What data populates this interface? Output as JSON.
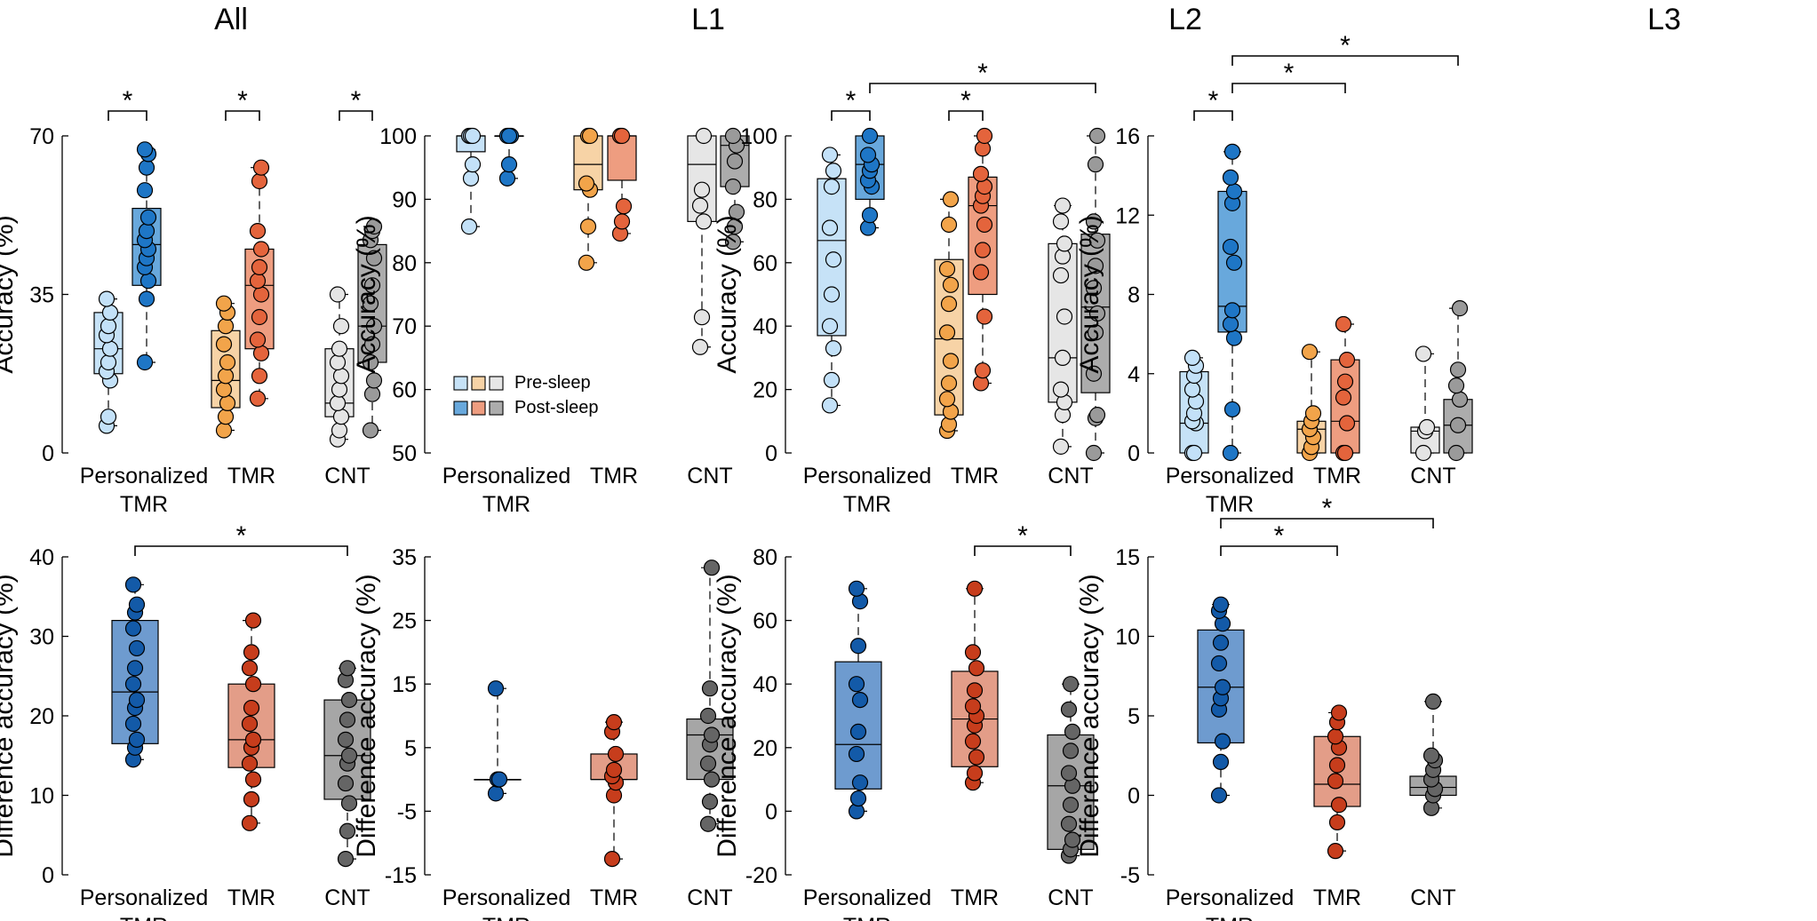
{
  "legend": {
    "pre_label": "Pre-sleep",
    "post_label": "Post-sleep"
  },
  "colors": {
    "pre": [
      "#c6e2f7",
      "#f7d3a6",
      "#e6e6e6"
    ],
    "post": [
      "#68a8dc",
      "#ee9d80",
      "#acacac"
    ],
    "pre_dot": [
      "#c3e1f8",
      "#f2a44a",
      "#e4e4e4"
    ],
    "post_dot": [
      "#1e76c6",
      "#e4643c",
      "#9a9a9a"
    ],
    "diff_box": [
      "#6e9bcf",
      "#e39d88",
      "#a6a6a6"
    ],
    "diff_dot": [
      "#135aa8",
      "#c73d1c",
      "#656565"
    ]
  },
  "chart_data": [
    {
      "type": "box",
      "panel": "top",
      "title": "All",
      "ylabel": "Accuracy (%)",
      "ylim": [
        0,
        70
      ],
      "yticks": [
        "0",
        "35",
        "70"
      ],
      "categories": [
        [
          "Personalized",
          "TMR"
        ],
        [
          "TMR"
        ],
        [
          "CNT"
        ]
      ],
      "boxes": [
        {
          "g": 0,
          "k": "pre",
          "q1": 17.5,
          "med": 23,
          "q3": 31,
          "wlo": 6,
          "whi": 34,
          "pts": [
            6,
            8,
            16,
            18,
            20,
            23,
            26,
            28,
            31,
            34
          ]
        },
        {
          "g": 0,
          "k": "post",
          "q1": 37,
          "med": 46,
          "q3": 54,
          "wlo": 20,
          "whi": 67,
          "pts": [
            20,
            34,
            38,
            41,
            43,
            45,
            47,
            49,
            52,
            58,
            63,
            66,
            67
          ]
        },
        {
          "g": 1,
          "k": "pre",
          "q1": 10,
          "med": 16,
          "q3": 27,
          "wlo": 5,
          "whi": 33,
          "pts": [
            5,
            8,
            11,
            14,
            17,
            20,
            24,
            28,
            31,
            33
          ]
        },
        {
          "g": 1,
          "k": "post",
          "q1": 23,
          "med": 37,
          "q3": 45,
          "wlo": 12,
          "whi": 63,
          "pts": [
            12,
            17,
            22,
            25,
            30,
            35,
            38,
            41,
            45,
            49,
            60,
            63
          ]
        },
        {
          "g": 2,
          "k": "pre",
          "q1": 8,
          "med": 11,
          "q3": 23,
          "wlo": 3,
          "whi": 35,
          "pts": [
            3,
            5,
            8,
            11,
            14,
            17,
            20,
            23,
            28,
            35
          ]
        },
        {
          "g": 2,
          "k": "post",
          "q1": 20,
          "med": 28,
          "q3": 46,
          "wlo": 5,
          "whi": 50,
          "pts": [
            5,
            13,
            16,
            20,
            24,
            28,
            33,
            37,
            43,
            47,
            49,
            50
          ]
        }
      ],
      "sig": [
        {
          "a": [
            0,
            0
          ],
          "b": [
            0,
            1
          ],
          "lvl": 0
        },
        {
          "a": [
            1,
            0
          ],
          "b": [
            1,
            1
          ],
          "lvl": 0
        },
        {
          "a": [
            2,
            0
          ],
          "b": [
            2,
            1
          ],
          "lvl": 0
        }
      ],
      "star": "*",
      "legend_visible": false
    },
    {
      "type": "box",
      "panel": "top",
      "title": "L1",
      "ylabel": "Accuracy (%)",
      "ylim": [
        50,
        100
      ],
      "yticks": [
        "50",
        "60",
        "70",
        "80",
        "90",
        "100"
      ],
      "categories": [
        [
          "Personalized",
          "TMR"
        ],
        [
          "TMR"
        ],
        [
          "CNT"
        ]
      ],
      "boxes": [
        {
          "g": 0,
          "k": "pre",
          "q1": 97.5,
          "med": 100,
          "q3": 100,
          "wlo": 85.7,
          "whi": 100,
          "pts": [
            85.7,
            93.3,
            95.5,
            100,
            100,
            100
          ]
        },
        {
          "g": 0,
          "k": "post",
          "q1": 100,
          "med": 100,
          "q3": 100,
          "wlo": 93.3,
          "whi": 100,
          "pts": [
            93.3,
            95.5,
            100,
            100,
            100
          ]
        },
        {
          "g": 1,
          "k": "pre",
          "q1": 91.5,
          "med": 95.5,
          "q3": 100,
          "wlo": 80,
          "whi": 100,
          "pts": [
            80,
            85.7,
            91.5,
            92.5,
            100,
            100
          ]
        },
        {
          "g": 1,
          "k": "post",
          "q1": 93,
          "med": 100,
          "q3": 100,
          "wlo": 84.6,
          "whi": 100,
          "pts": [
            84.6,
            86.5,
            88.9,
            100,
            100
          ]
        },
        {
          "g": 2,
          "k": "pre",
          "q1": 86.5,
          "med": 95.5,
          "q3": 100,
          "wlo": 66.7,
          "whi": 100,
          "pts": [
            66.7,
            71.4,
            86.5,
            89,
            91.5,
            100
          ]
        },
        {
          "g": 2,
          "k": "post",
          "q1": 92,
          "med": 98.5,
          "q3": 100,
          "wlo": 83.3,
          "whi": 100,
          "pts": [
            83.3,
            85.7,
            88,
            92,
            96,
            98.5,
            100
          ]
        }
      ],
      "sig": [],
      "star": "*",
      "legend_visible": true
    },
    {
      "type": "box",
      "panel": "top",
      "title": "L2",
      "ylabel": "Accuracy (%)",
      "ylim": [
        0,
        100
      ],
      "yticks": [
        "0",
        "20",
        "40",
        "60",
        "80",
        "100"
      ],
      "categories": [
        [
          "Personalized",
          "TMR"
        ],
        [
          "TMR"
        ],
        [
          "CNT"
        ]
      ],
      "boxes": [
        {
          "g": 0,
          "k": "pre",
          "q1": 37,
          "med": 67,
          "q3": 86.5,
          "wlo": 15,
          "whi": 94,
          "pts": [
            15,
            23,
            33,
            40,
            50,
            61,
            71,
            84,
            89,
            94
          ]
        },
        {
          "g": 0,
          "k": "post",
          "q1": 80,
          "med": 91,
          "q3": 100,
          "wlo": 71,
          "whi": 100,
          "pts": [
            71,
            75,
            84,
            86,
            89,
            91,
            94,
            100
          ]
        },
        {
          "g": 1,
          "k": "pre",
          "q1": 12,
          "med": 36,
          "q3": 61,
          "wlo": 7,
          "whi": 80,
          "pts": [
            7,
            9,
            13,
            17,
            22,
            29,
            38,
            47,
            53,
            58,
            72,
            80
          ]
        },
        {
          "g": 1,
          "k": "post",
          "q1": 50,
          "med": 78,
          "q3": 87,
          "wlo": 22,
          "whi": 100,
          "pts": [
            22,
            26,
            43,
            57,
            64,
            72,
            78,
            81,
            84,
            88,
            96,
            100
          ]
        },
        {
          "g": 2,
          "k": "pre",
          "q1": 16,
          "med": 30,
          "q3": 66,
          "wlo": 2,
          "whi": 78,
          "pts": [
            2,
            12,
            16,
            20,
            30,
            43,
            56,
            62,
            66,
            73,
            78
          ]
        },
        {
          "g": 2,
          "k": "post",
          "q1": 19,
          "med": 46,
          "q3": 69,
          "wlo": 0,
          "whi": 100,
          "pts": [
            0,
            11,
            12,
            25,
            38,
            44,
            52,
            59,
            67,
            73,
            91,
            100
          ]
        }
      ],
      "sig": [
        {
          "a": [
            0,
            0
          ],
          "b": [
            0,
            1
          ],
          "lvl": 0
        },
        {
          "a": [
            1,
            0
          ],
          "b": [
            1,
            1
          ],
          "lvl": 0
        },
        {
          "a": [
            0,
            1
          ],
          "b": [
            2,
            1
          ],
          "lvl": 1
        }
      ],
      "star": "*",
      "legend_visible": false
    },
    {
      "type": "box",
      "panel": "top",
      "title": "L3",
      "ylabel": "Accuracy (%)",
      "ylim": [
        0,
        16
      ],
      "yticks": [
        "0",
        "4",
        "8",
        "12",
        "16"
      ],
      "categories": [
        [
          "Personalized",
          "TMR"
        ],
        [
          "TMR"
        ],
        [
          "CNT"
        ]
      ],
      "boxes": [
        {
          "g": 0,
          "k": "pre",
          "q1": 0,
          "med": 1.5,
          "q3": 4.1,
          "wlo": 0,
          "whi": 4.8,
          "pts": [
            0,
            0,
            1.5,
            1.6,
            2.0,
            2.6,
            3.2,
            3.9,
            4.4,
            4.8
          ]
        },
        {
          "g": 0,
          "k": "post",
          "q1": 6.1,
          "med": 7.4,
          "q3": 13.2,
          "wlo": 0,
          "whi": 15.2,
          "pts": [
            0,
            2.2,
            5.8,
            6.5,
            7.2,
            9.6,
            10.4,
            12.6,
            13.2,
            13.9,
            15.2
          ]
        },
        {
          "g": 1,
          "k": "pre",
          "q1": 0,
          "med": 1.2,
          "q3": 1.6,
          "wlo": 0,
          "whi": 5.1,
          "pts": [
            0,
            0.3,
            0.8,
            1.2,
            1.6,
            2.0,
            5.1
          ]
        },
        {
          "g": 1,
          "k": "post",
          "q1": 0,
          "med": 1.6,
          "q3": 4.7,
          "wlo": 0,
          "whi": 6.5,
          "pts": [
            0,
            0,
            1.5,
            2.8,
            3.6,
            4.7,
            6.5
          ]
        },
        {
          "g": 2,
          "k": "pre",
          "q1": 0,
          "med": 1.1,
          "q3": 1.3,
          "wlo": 0,
          "whi": 5.0,
          "pts": [
            0,
            1.1,
            1.3,
            5.0
          ]
        },
        {
          "g": 2,
          "k": "post",
          "q1": 0,
          "med": 1.4,
          "q3": 2.7,
          "wlo": 0,
          "whi": 7.3,
          "pts": [
            0,
            1.4,
            2.7,
            3.4,
            4.2,
            7.3
          ]
        }
      ],
      "sig": [
        {
          "a": [
            0,
            0
          ],
          "b": [
            0,
            1
          ],
          "lvl": 0
        },
        {
          "a": [
            0,
            1
          ],
          "b": [
            1,
            1
          ],
          "lvl": 1
        },
        {
          "a": [
            0,
            1
          ],
          "b": [
            2,
            1
          ],
          "lvl": 2
        }
      ],
      "star": "*",
      "legend_visible": false
    },
    {
      "type": "box",
      "panel": "bottom",
      "ylabel": "Difference accuracy (%)",
      "ylim": [
        0,
        40
      ],
      "yticks": [
        "0",
        "10",
        "20",
        "30",
        "40"
      ],
      "categories": [
        [
          "Personalized",
          "TMR"
        ],
        [
          "TMR"
        ],
        [
          "CNT"
        ]
      ],
      "boxes": [
        {
          "g": 0,
          "q1": 16.5,
          "med": 23,
          "q3": 32,
          "wlo": 14.5,
          "whi": 36.5,
          "pts": [
            14.5,
            16,
            17,
            19,
            21,
            22,
            24,
            26,
            28.5,
            31,
            33,
            34,
            36.5
          ]
        },
        {
          "g": 1,
          "q1": 13.5,
          "med": 17,
          "q3": 24,
          "wlo": 6.5,
          "whi": 32,
          "pts": [
            6.5,
            9.5,
            12,
            14,
            16,
            17,
            19,
            21,
            24,
            26,
            28,
            32
          ]
        },
        {
          "g": 2,
          "q1": 9.5,
          "med": 15,
          "q3": 22,
          "wlo": 2,
          "whi": 26,
          "pts": [
            2,
            5.5,
            9,
            11.5,
            14,
            15,
            17,
            19.5,
            22,
            24.5,
            26
          ]
        }
      ],
      "sig": [
        {
          "a": [
            0
          ],
          "b": [
            2
          ],
          "lvl": 0
        }
      ],
      "star": "*"
    },
    {
      "type": "box",
      "panel": "bottom",
      "ylabel": "Difference accuracy (%)",
      "ylim": [
        -15,
        35
      ],
      "yticks": [
        "-15",
        "-5",
        "5",
        "15",
        "25",
        "35"
      ],
      "categories": [
        [
          "Personalized",
          "TMR"
        ],
        [
          "TMR"
        ],
        [
          "CNT"
        ]
      ],
      "boxes": [
        {
          "g": 0,
          "q1": 0,
          "med": 0,
          "q3": 0,
          "wlo": -2.2,
          "whi": 14.3,
          "pts": [
            -2.2,
            0,
            0,
            14.3
          ]
        },
        {
          "g": 1,
          "q1": 0,
          "med": 0,
          "q3": 4,
          "wlo": -12.5,
          "whi": 9,
          "pts": [
            -12.5,
            -2.5,
            -0.5,
            0.5,
            1.5,
            4,
            7.5,
            9
          ]
        },
        {
          "g": 2,
          "q1": 0,
          "med": 7,
          "q3": 9.5,
          "wlo": -7,
          "whi": 33.3,
          "pts": [
            -7,
            -3.5,
            0,
            2.5,
            5.5,
            7,
            10,
            14.3,
            33.3
          ]
        }
      ],
      "sig": [],
      "star": "*"
    },
    {
      "type": "box",
      "panel": "bottom",
      "ylabel": "Difference accuracy (%)",
      "ylim": [
        -20,
        80
      ],
      "yticks": [
        "-20",
        "0",
        "20",
        "40",
        "60",
        "80"
      ],
      "categories": [
        [
          "Personalized",
          "TMR"
        ],
        [
          "TMR"
        ],
        [
          "CNT"
        ]
      ],
      "boxes": [
        {
          "g": 0,
          "q1": 7,
          "med": 21,
          "q3": 47,
          "wlo": 0,
          "whi": 70,
          "pts": [
            0,
            4,
            9,
            18,
            25,
            35,
            40,
            52,
            66,
            70
          ]
        },
        {
          "g": 1,
          "q1": 14,
          "med": 29,
          "q3": 44,
          "wlo": 9,
          "whi": 70,
          "pts": [
            9,
            12,
            17,
            22,
            27,
            30,
            33,
            38,
            45,
            50,
            70
          ]
        },
        {
          "g": 2,
          "q1": -12,
          "med": 8,
          "q3": 24,
          "wlo": -14,
          "whi": 40,
          "pts": [
            -14,
            -12,
            -9,
            -4,
            2,
            8,
            12,
            19,
            25,
            32,
            40
          ]
        }
      ],
      "sig": [
        {
          "a": [
            1
          ],
          "b": [
            2
          ],
          "lvl": 0
        }
      ],
      "star": "*"
    },
    {
      "type": "box",
      "panel": "bottom",
      "ylabel": "Difference accuracy (%)",
      "ylim": [
        -5,
        15
      ],
      "yticks": [
        "-5",
        "0",
        "5",
        "10",
        "15"
      ],
      "categories": [
        [
          "Personalized",
          "TMR"
        ],
        [
          "TMR"
        ],
        [
          "CNT"
        ]
      ],
      "boxes": [
        {
          "g": 0,
          "q1": 3.3,
          "med": 6.8,
          "q3": 10.4,
          "wlo": 0,
          "whi": 12,
          "pts": [
            0,
            2.1,
            3.4,
            5.4,
            6.1,
            6.8,
            8.3,
            9.6,
            10.8,
            11.6,
            12
          ]
        },
        {
          "g": 1,
          "q1": -0.7,
          "med": 0.7,
          "q3": 3.7,
          "wlo": -3.5,
          "whi": 5.2,
          "pts": [
            -3.5,
            -1.7,
            -0.6,
            0.9,
            1.9,
            3.0,
            3.7,
            4.6,
            5.2
          ]
        },
        {
          "g": 2,
          "q1": 0,
          "med": 0.5,
          "q3": 1.2,
          "wlo": -0.8,
          "whi": 5.9,
          "pts": [
            -0.8,
            0,
            0.4,
            1.0,
            1.6,
            2.2,
            2.5,
            5.9
          ]
        }
      ],
      "sig": [
        {
          "a": [
            0
          ],
          "b": [
            1
          ],
          "lvl": 0
        },
        {
          "a": [
            0
          ],
          "b": [
            2
          ],
          "lvl": 1
        }
      ],
      "star": "*"
    }
  ]
}
